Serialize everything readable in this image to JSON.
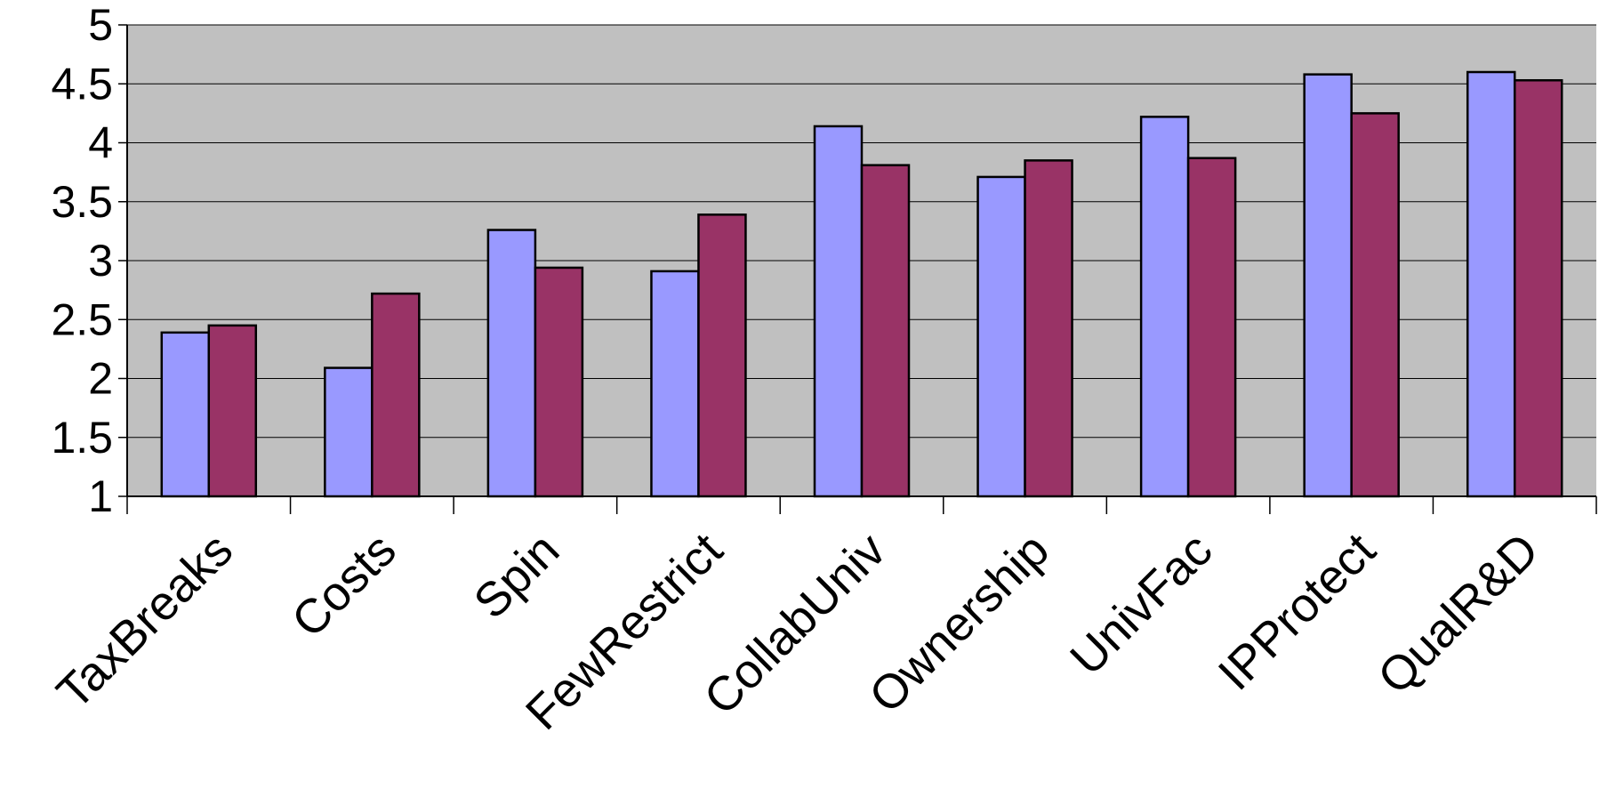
{
  "chart_data": {
    "type": "bar",
    "title": "",
    "xlabel": "",
    "ylabel": "",
    "ylim": [
      1,
      5
    ],
    "yticks": [
      1,
      1.5,
      2,
      2.5,
      3,
      3.5,
      4,
      4.5,
      5
    ],
    "ytick_labels": [
      "1",
      "1.5",
      "2",
      "2.5",
      "3",
      "3.5",
      "4",
      "4.5",
      "5"
    ],
    "grid": true,
    "legend": "none",
    "categories": [
      "TaxBreaks",
      "Costs",
      "Spin",
      "FewRestrict",
      "CollabUniv",
      "Ownership",
      "UnivFac",
      "IPProtect",
      "QualR&D"
    ],
    "series": [
      {
        "values": [
          2.39,
          2.09,
          3.26,
          2.91,
          4.14,
          3.71,
          4.22,
          4.58,
          4.6
        ],
        "color": "#9999ff"
      },
      {
        "values": [
          2.45,
          2.72,
          2.94,
          3.39,
          3.81,
          3.85,
          3.87,
          4.25,
          4.53
        ],
        "color": "#993366"
      }
    ],
    "plot_background": "#c0c0c0",
    "grid_color": "#000000"
  }
}
